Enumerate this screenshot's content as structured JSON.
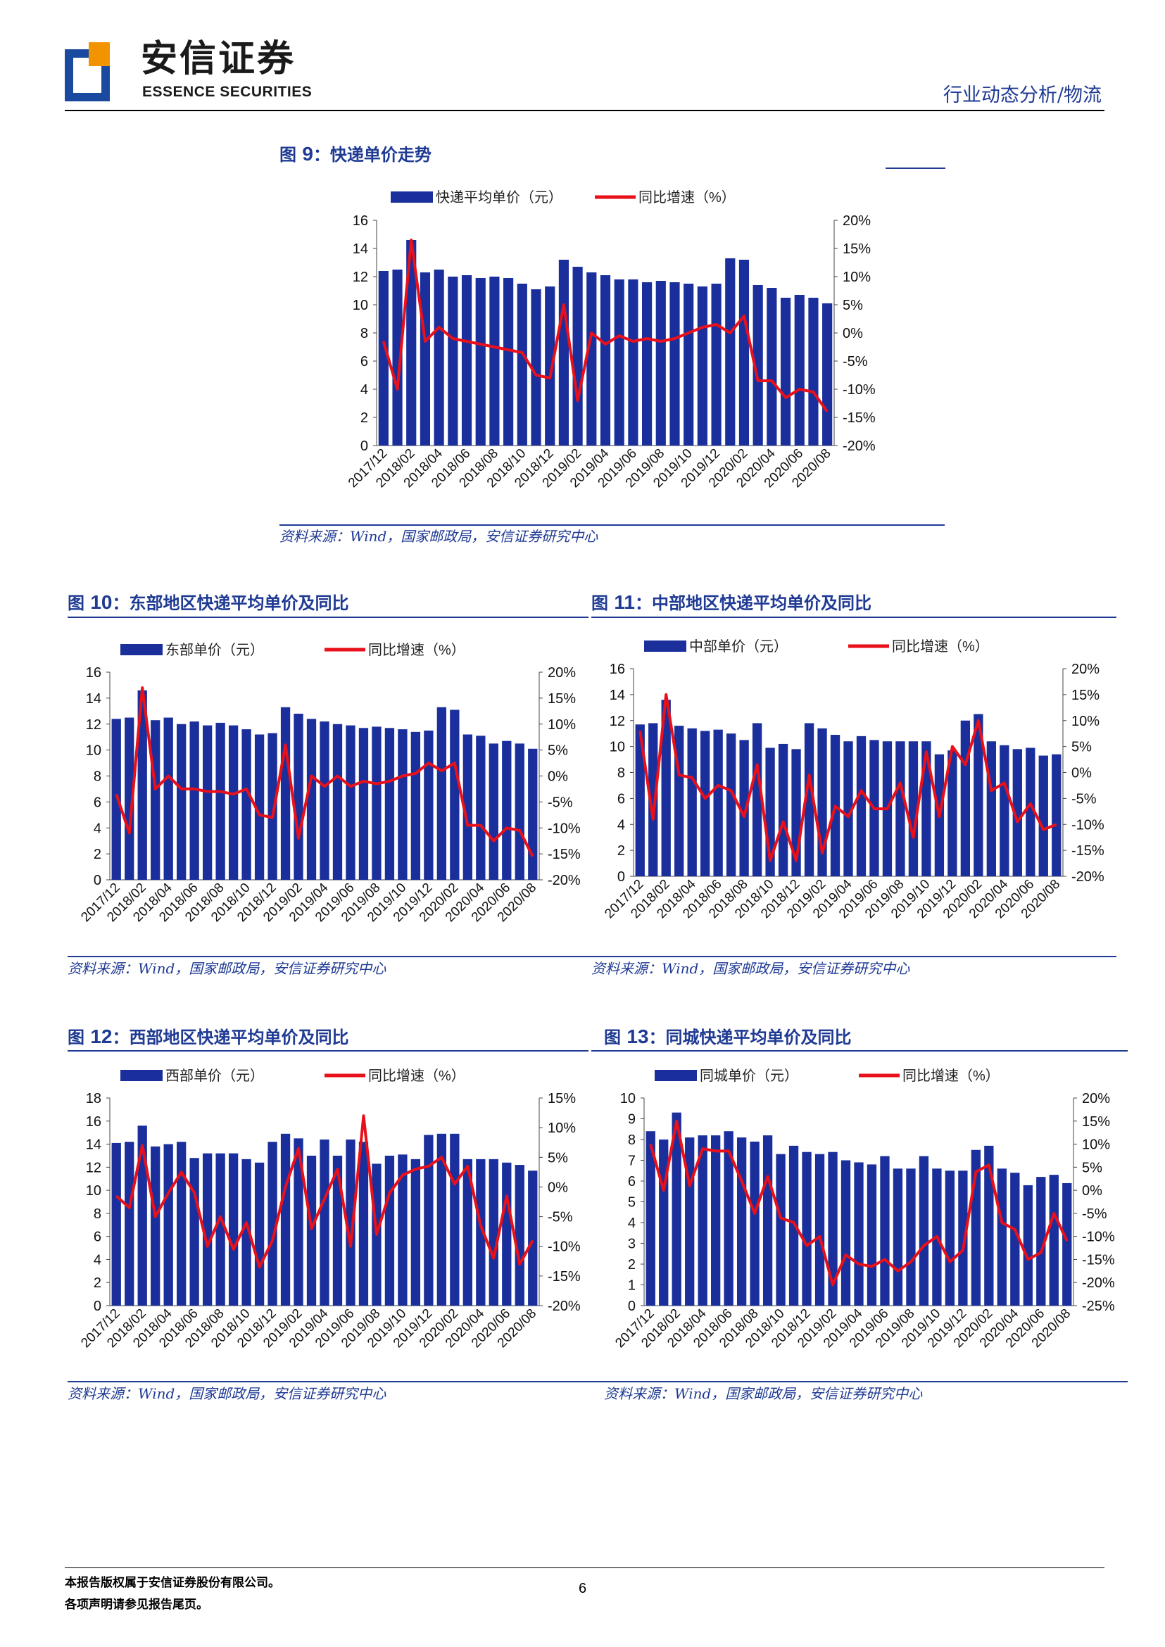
{
  "header": {
    "logo_cn": "安信证券",
    "logo_en": "ESSENCE SECURITIES",
    "category": "行业动态分析/物流"
  },
  "footer": {
    "copyright": "本报告版权属于安信证券股份有限公司。",
    "disclaimer": "各项声明请参见报告尾页。",
    "page_number": "6"
  },
  "colors": {
    "bar": "#1a2f9b",
    "line": "#e8101a",
    "text": "#1f3a93"
  },
  "shared_x_labels": [
    "2017/12",
    "2018/02",
    "2018/04",
    "2018/06",
    "2018/08",
    "2018/10",
    "2018/12",
    "2019/02",
    "2019/04",
    "2019/06",
    "2019/08",
    "2019/10",
    "2019/12",
    "2020/02",
    "2020/04",
    "2020/06",
    "2020/08"
  ],
  "figures": [
    {
      "label": "图 ",
      "num": "9",
      "title": "：快递单价走势",
      "source": "资料来源：Wind，国家邮政局，安信证券研究中心",
      "chart_data": {
        "type": "bar+line",
        "categories": [
          "2017/12",
          "2018/01",
          "2018/02",
          "2018/03",
          "2018/04",
          "2018/05",
          "2018/06",
          "2018/07",
          "2018/08",
          "2018/09",
          "2018/10",
          "2018/11",
          "2018/12",
          "2019/01",
          "2019/02",
          "2019/03",
          "2019/04",
          "2019/05",
          "2019/06",
          "2019/07",
          "2019/08",
          "2019/09",
          "2019/10",
          "2019/11",
          "2019/12",
          "2020/01",
          "2020/02",
          "2020/03",
          "2020/04",
          "2020/05",
          "2020/06",
          "2020/07",
          "2020/08"
        ],
        "bar_series": {
          "name": "快递平均单价（元）",
          "values": [
            12.4,
            12.5,
            14.6,
            12.3,
            12.5,
            12.0,
            12.1,
            11.9,
            12.0,
            11.9,
            11.5,
            11.1,
            11.3,
            13.2,
            12.7,
            12.3,
            12.1,
            11.8,
            11.8,
            11.6,
            11.7,
            11.6,
            11.5,
            11.3,
            11.5,
            13.3,
            13.2,
            11.4,
            11.2,
            10.5,
            10.7,
            10.5,
            10.1
          ]
        },
        "line_series": {
          "name": "同比增速（%）",
          "values": [
            -1.5,
            -10,
            16.5,
            -1.5,
            1,
            -1,
            -1.5,
            -2,
            -2.5,
            -3,
            -3.5,
            -7.5,
            -8,
            5,
            -12,
            0,
            -2,
            -0.5,
            -1.5,
            -1,
            -1.5,
            -1,
            0,
            1,
            1.5,
            0,
            3,
            -8.5,
            -8.5,
            -11.5,
            -10,
            -10.5,
            -14
          ]
        },
        "y_left": {
          "min": 0,
          "max": 16,
          "ticks": [
            "0",
            "2",
            "4",
            "6",
            "8",
            "10",
            "12",
            "14",
            "16"
          ]
        },
        "y_right": {
          "min": -20,
          "max": 20,
          "ticks": [
            "-20%",
            "-15%",
            "-10%",
            "-5%",
            "0%",
            "5%",
            "10%",
            "15%",
            "20%"
          ]
        }
      }
    },
    {
      "label": "图 ",
      "num": "10",
      "title": "：东部地区快递平均单价及同比",
      "source": "资料来源：Wind，国家邮政局，安信证券研究中心",
      "chart_data": {
        "type": "bar+line",
        "bar_series": {
          "name": "东部单价（元）",
          "values": [
            12.4,
            12.5,
            14.6,
            12.3,
            12.5,
            12.0,
            12.2,
            11.9,
            12.1,
            11.9,
            11.6,
            11.2,
            11.3,
            13.3,
            12.8,
            12.4,
            12.2,
            12.0,
            11.9,
            11.7,
            11.8,
            11.7,
            11.6,
            11.4,
            11.5,
            13.3,
            13.1,
            11.2,
            11.1,
            10.5,
            10.7,
            10.5,
            10.1
          ]
        },
        "line_series": {
          "name": "同比增速（%）",
          "values": [
            -3.5,
            -11,
            17,
            -2.5,
            0,
            -2.5,
            -2.5,
            -3,
            -3,
            -3.5,
            -2.5,
            -7.5,
            -8,
            6,
            -12,
            0,
            -2,
            0,
            -2,
            -1,
            -1.5,
            -1,
            0,
            0.5,
            2.5,
            1,
            2.5,
            -9.5,
            -9.5,
            -12.5,
            -10,
            -10.5,
            -15.5
          ]
        },
        "y_left": {
          "min": 0,
          "max": 16,
          "ticks": [
            "0",
            "2",
            "4",
            "6",
            "8",
            "10",
            "12",
            "14",
            "16"
          ]
        },
        "y_right": {
          "min": -20,
          "max": 20,
          "ticks": [
            "-20%",
            "-15%",
            "-10%",
            "-5%",
            "0%",
            "5%",
            "10%",
            "15%",
            "20%"
          ]
        }
      }
    },
    {
      "label": "图 ",
      "num": "11",
      "title": "：中部地区快递平均单价及同比",
      "source": "资料来源：Wind，国家邮政局，安信证券研究中心",
      "chart_data": {
        "type": "bar+line",
        "bar_series": {
          "name": "中部单价（元）",
          "values": [
            11.7,
            11.8,
            13.6,
            11.6,
            11.4,
            11.2,
            11.3,
            11.0,
            10.5,
            11.8,
            9.9,
            10.2,
            9.8,
            11.8,
            11.4,
            10.9,
            10.4,
            10.8,
            10.5,
            10.4,
            10.4,
            10.4,
            10.4,
            9.4,
            9.7,
            12.0,
            12.5,
            10.4,
            10.1,
            9.8,
            9.9,
            9.3,
            9.4
          ]
        },
        "line_series": {
          "name": "同比增速（%）",
          "values": [
            8,
            -9,
            15,
            -0.5,
            -1,
            -5,
            -2.5,
            -3.5,
            -8.5,
            1.5,
            -17,
            -9.5,
            -17,
            -0.5,
            -15.5,
            -6.5,
            -8.5,
            -3.5,
            -7,
            -7,
            -2,
            -12.5,
            4,
            -8.5,
            5,
            1.5,
            10,
            -3.5,
            -2,
            -9.5,
            -6,
            -11,
            -10
          ]
        },
        "y_left": {
          "min": 0,
          "max": 16,
          "ticks": [
            "0",
            "2",
            "4",
            "6",
            "8",
            "10",
            "12",
            "14",
            "16"
          ]
        },
        "y_right": {
          "min": -20,
          "max": 20,
          "ticks": [
            "-20%",
            "-15%",
            "-10%",
            "-5%",
            "0%",
            "5%",
            "10%",
            "15%",
            "20%"
          ]
        }
      }
    },
    {
      "label": "图 ",
      "num": "12",
      "title": "：西部地区快递平均单价及同比",
      "source": "资料来源：Wind，国家邮政局，安信证券研究中心",
      "chart_data": {
        "type": "bar+line",
        "bar_series": {
          "name": "西部单价（元）",
          "values": [
            14.1,
            14.2,
            15.6,
            13.8,
            14.0,
            14.2,
            12.8,
            13.2,
            13.2,
            13.2,
            12.7,
            12.4,
            14.2,
            14.9,
            14.5,
            13.0,
            14.4,
            13.0,
            14.4,
            14.2,
            12.3,
            13.0,
            13.1,
            12.7,
            14.8,
            14.9,
            14.9,
            12.7,
            12.7,
            12.7,
            12.4,
            12.2,
            11.7
          ]
        },
        "line_series": {
          "name": "同比增速（%）",
          "values": [
            -1.5,
            -3.5,
            7,
            -5,
            -1,
            2.5,
            -1,
            -10,
            -5,
            -10.5,
            -6,
            -13.5,
            -9,
            0,
            6.5,
            -7,
            -2,
            3,
            -10,
            12,
            -8,
            -1,
            2,
            3,
            3.5,
            5,
            0.5,
            3.5,
            -6.5,
            -12,
            -1.5,
            -13,
            -9
          ]
        },
        "y_left": {
          "min": 0,
          "max": 18,
          "ticks": [
            "0",
            "2",
            "4",
            "6",
            "8",
            "10",
            "12",
            "14",
            "16",
            "18"
          ]
        },
        "y_right": {
          "min": -20,
          "max": 15,
          "ticks": [
            "-20%",
            "-15%",
            "-10%",
            "-5%",
            "0%",
            "5%",
            "10%",
            "15%"
          ]
        }
      }
    },
    {
      "label": "图 ",
      "num": "13",
      "title": "：同城快递平均单价及同比",
      "source": "资料来源：Wind，国家邮政局，安信证券研究中心",
      "chart_data": {
        "type": "bar+line",
        "bar_series": {
          "name": "同城单价（元）",
          "values": [
            8.4,
            8.0,
            9.3,
            8.1,
            8.2,
            8.2,
            8.4,
            8.1,
            7.9,
            8.2,
            7.3,
            7.7,
            7.4,
            7.3,
            7.4,
            7.0,
            6.9,
            6.8,
            7.2,
            6.6,
            6.6,
            7.2,
            6.6,
            6.5,
            6.5,
            7.5,
            7.7,
            6.6,
            6.4,
            5.8,
            6.2,
            6.3,
            5.9
          ]
        },
        "line_series": {
          "name": "同比增速（%）",
          "values": [
            10,
            0,
            15,
            1,
            9,
            8.5,
            8.5,
            2,
            -5,
            3,
            -6,
            -7,
            -12,
            -10,
            -20.5,
            -14,
            -16,
            -16.5,
            -15,
            -17.5,
            -15.5,
            -12,
            -10,
            -15.5,
            -13,
            4,
            5.5,
            -7,
            -8.5,
            -15,
            -13.5,
            -5,
            -11
          ]
        },
        "y_left": {
          "min": 0,
          "max": 10,
          "ticks": [
            "0",
            "1",
            "2",
            "3",
            "4",
            "5",
            "6",
            "7",
            "8",
            "9",
            "10"
          ]
        },
        "y_right": {
          "min": -25,
          "max": 20,
          "ticks": [
            "-25%",
            "-20%",
            "-15%",
            "-10%",
            "-5%",
            "0%",
            "5%",
            "10%",
            "15%",
            "20%"
          ]
        }
      }
    }
  ]
}
